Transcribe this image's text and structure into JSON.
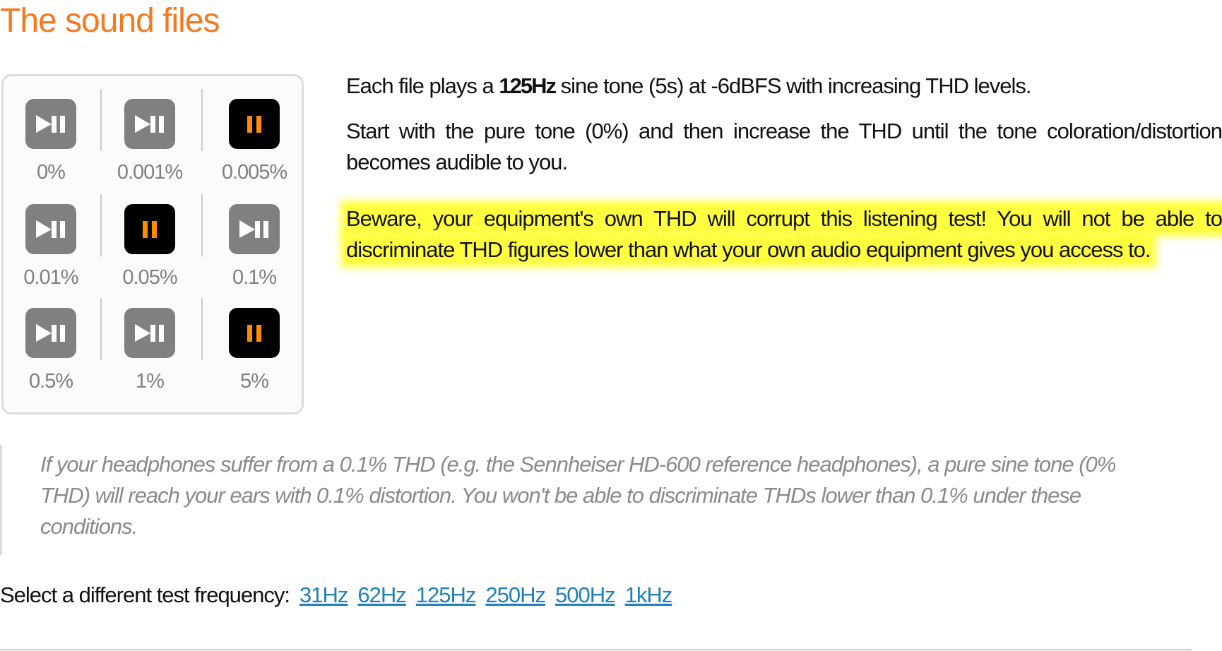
{
  "title": "The sound files",
  "accent_color": "#f47a20",
  "players": [
    {
      "label": "0%",
      "state": "paused",
      "icon": "play-pause-icon"
    },
    {
      "label": "0.001%",
      "state": "paused",
      "icon": "play-pause-icon"
    },
    {
      "label": "0.005%",
      "state": "playing",
      "icon": "pause-icon"
    },
    {
      "label": "0.01%",
      "state": "paused",
      "icon": "play-pause-icon"
    },
    {
      "label": "0.05%",
      "state": "playing",
      "icon": "pause-icon"
    },
    {
      "label": "0.1%",
      "state": "paused",
      "icon": "play-pause-icon"
    },
    {
      "label": "0.5%",
      "state": "paused",
      "icon": "play-pause-icon"
    },
    {
      "label": "1%",
      "state": "paused",
      "icon": "play-pause-icon"
    },
    {
      "label": "5%",
      "state": "playing",
      "icon": "pause-icon"
    }
  ],
  "description": {
    "p1_before": "Each file plays a ",
    "p1_bold": "125Hz",
    "p1_after": " sine tone (5s) at -6dBFS with increasing THD levels.",
    "p2": "Start with the pure tone (0%) and then increase the THD until the tone coloration/distortion becomes audible to you.",
    "warning": "Beware, your equipment's own THD will corrupt this listening test! You will not be able to discriminate THD figures lower than what your own audio equipment gives you access to."
  },
  "note": "If your headphones suffer from a 0.1% THD (e.g. the Sennheiser HD-600 reference headphones), a pure sine tone (0% THD) will reach your ears with 0.1% distortion. You won't be able to discriminate THDs lower than 0.1% under these conditions.",
  "frequency": {
    "label": "Select a different test frequency:",
    "links": [
      "31Hz",
      "62Hz",
      "125Hz",
      "250Hz",
      "500Hz",
      "1kHz"
    ]
  }
}
